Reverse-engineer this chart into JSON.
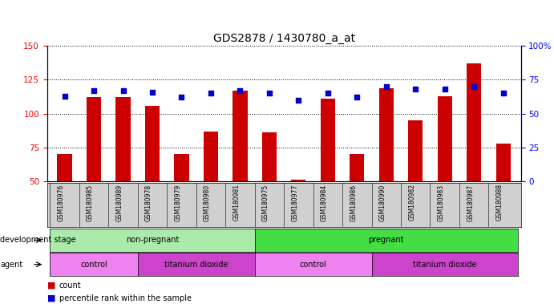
{
  "title": "GDS2878 / 1430780_a_at",
  "samples": [
    "GSM180976",
    "GSM180985",
    "GSM180989",
    "GSM180978",
    "GSM180979",
    "GSM180980",
    "GSM180981",
    "GSM180975",
    "GSM180977",
    "GSM180984",
    "GSM180986",
    "GSM180990",
    "GSM180982",
    "GSM180983",
    "GSM180987",
    "GSM180988"
  ],
  "counts": [
    70,
    112,
    112,
    106,
    70,
    87,
    117,
    86,
    51,
    111,
    70,
    119,
    95,
    113,
    137,
    78
  ],
  "percentiles": [
    63,
    67,
    67,
    66,
    62,
    65,
    67,
    65,
    60,
    65,
    62,
    70,
    68,
    68,
    70,
    65
  ],
  "ymin": 50,
  "ymax": 150,
  "y2min": 0,
  "y2max": 100,
  "yticks": [
    50,
    75,
    100,
    125,
    150
  ],
  "y2ticks": [
    0,
    25,
    50,
    75,
    100
  ],
  "bar_color": "#cc0000",
  "dot_color": "#0000cc",
  "bar_bottom": 50,
  "xlabels_bg": "#d0d0d0",
  "dev_stage_groups": [
    {
      "label": "non-pregnant",
      "start": 0,
      "end": 7,
      "color": "#aaeaaa"
    },
    {
      "label": "pregnant",
      "start": 7,
      "end": 16,
      "color": "#44dd44"
    }
  ],
  "agent_groups": [
    {
      "label": "control",
      "start": 0,
      "end": 3,
      "color": "#ee82ee"
    },
    {
      "label": "titanium dioxide",
      "start": 3,
      "end": 7,
      "color": "#cc44cc"
    },
    {
      "label": "control",
      "start": 7,
      "end": 11,
      "color": "#ee82ee"
    },
    {
      "label": "titanium dioxide",
      "start": 11,
      "end": 16,
      "color": "#cc44cc"
    }
  ],
  "legend_count_label": "count",
  "legend_pct_label": "percentile rank within the sample",
  "dev_stage_row_label": "development stage",
  "agent_row_label": "agent"
}
